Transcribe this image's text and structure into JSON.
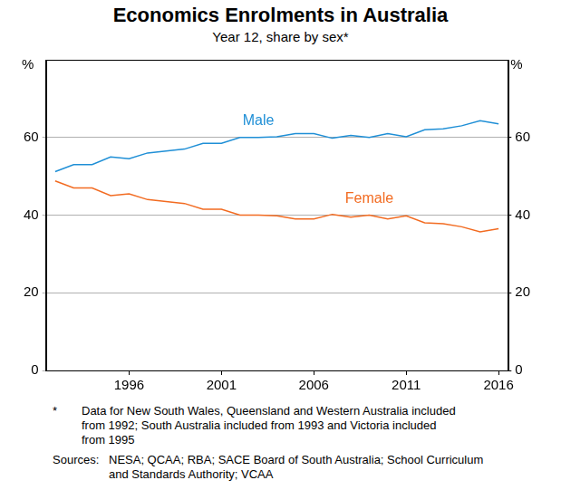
{
  "chart_data": {
    "type": "line",
    "title": "Economics Enrolments in Australia",
    "subtitle": "Year 12, share by sex*",
    "ylabel": "%",
    "y2label": "%",
    "x": [
      1992,
      1993,
      1994,
      1995,
      1996,
      1997,
      1998,
      1999,
      2000,
      2001,
      2002,
      2003,
      2004,
      2005,
      2006,
      2007,
      2008,
      2009,
      2010,
      2011,
      2012,
      2013,
      2014,
      2015,
      2016
    ],
    "series": [
      {
        "name": "Male",
        "color": "#1f8fd6",
        "values": [
          51.2,
          53,
          53,
          55,
          54.5,
          56,
          56.5,
          57,
          58.5,
          58.5,
          60,
          60,
          60.2,
          61,
          61,
          59.8,
          60.5,
          60,
          61,
          60.2,
          62,
          62.2,
          63,
          64.3,
          63.5
        ]
      },
      {
        "name": "Female",
        "color": "#f26b21",
        "values": [
          48.8,
          47,
          47,
          45,
          45.5,
          44,
          43.5,
          43,
          41.5,
          41.5,
          40,
          40,
          39.8,
          39,
          39,
          40.2,
          39.5,
          40,
          39,
          39.8,
          38,
          37.8,
          37,
          35.7,
          36.5
        ]
      }
    ],
    "xlim": [
      1991.5,
      2016.5
    ],
    "xticks": [
      1996,
      2001,
      2006,
      2011,
      2016
    ],
    "ylim": [
      0,
      80
    ],
    "yticks": [
      0,
      20,
      40,
      60
    ],
    "y2lim": [
      0,
      80
    ],
    "y2ticks": [
      0,
      20,
      40,
      60
    ],
    "grid": true,
    "notes": [
      {
        "marker": "*",
        "text": "Data for New South Wales, Queensland and Western Australia included from 1992; South Australia included from 1993 and Victoria included from 1995"
      }
    ],
    "sources": {
      "label": "Sources:",
      "text": "NESA; QCAA; RBA; SACE Board of South Australia; School Curriculum and Standards Authority; VCAA"
    }
  }
}
